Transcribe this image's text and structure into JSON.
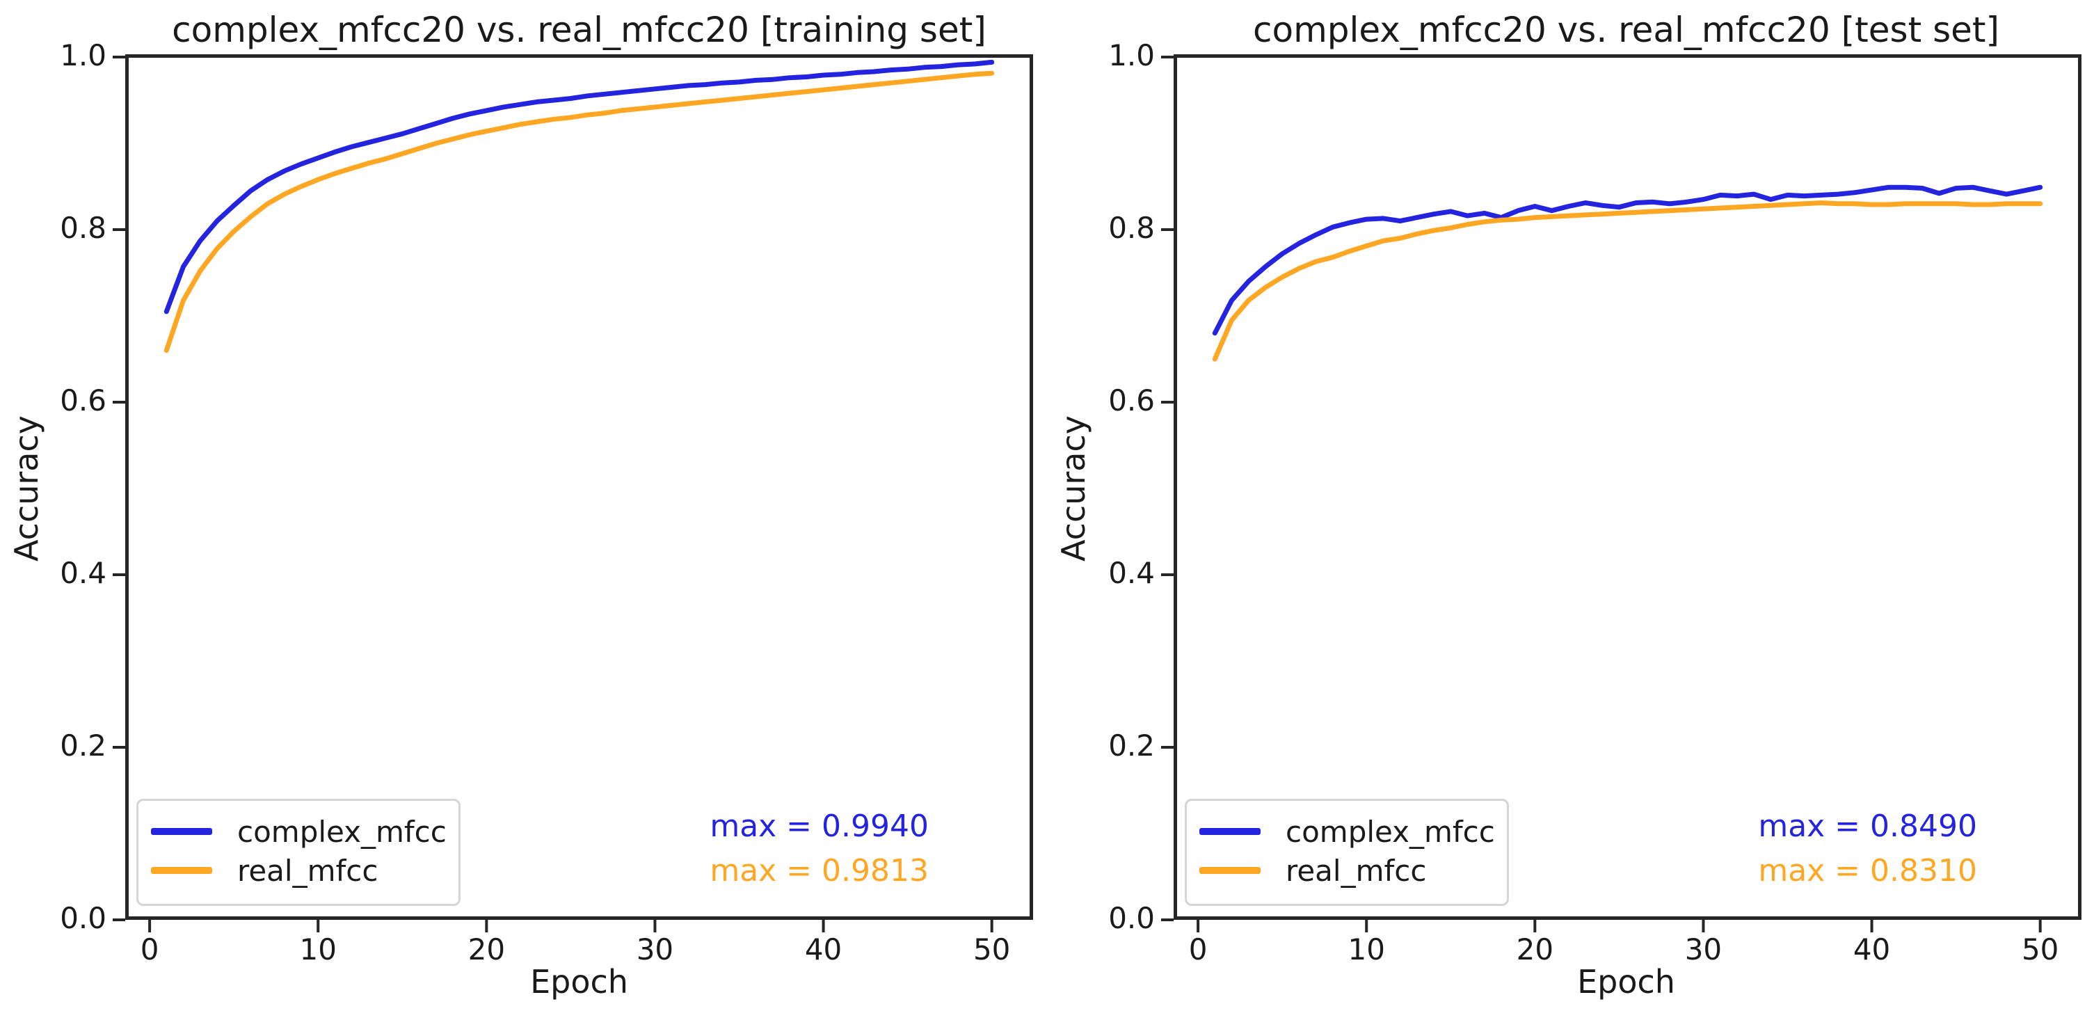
{
  "page": {
    "background": "#ffffff",
    "text_color": "#1a1a1a",
    "spine_color": "#262626"
  },
  "chart_data": [
    {
      "type": "line",
      "title": "complex_mfcc20 vs. real_mfcc20 [training set]",
      "xlabel": "Epoch",
      "ylabel": "Accuracy",
      "xlim": [
        -1.45,
        52.45
      ],
      "ylim": [
        0,
        1.0032
      ],
      "grid": false,
      "legend_position": "lower left",
      "xticks": [
        0,
        10,
        20,
        30,
        40,
        50
      ],
      "xtick_labels": [
        "0",
        "10",
        "20",
        "30",
        "40",
        "50"
      ],
      "yticks": [
        0.0,
        0.2,
        0.4,
        0.6,
        0.8,
        1.0
      ],
      "ytick_labels": [
        "0.0",
        "0.2",
        "0.4",
        "0.6",
        "0.8",
        "1.0"
      ],
      "x": [
        1,
        2,
        3,
        4,
        5,
        6,
        7,
        8,
        9,
        10,
        11,
        12,
        13,
        14,
        15,
        16,
        17,
        18,
        19,
        20,
        21,
        22,
        23,
        24,
        25,
        26,
        27,
        28,
        29,
        30,
        31,
        32,
        33,
        34,
        35,
        36,
        37,
        38,
        39,
        40,
        41,
        42,
        43,
        44,
        45,
        46,
        47,
        48,
        49,
        50
      ],
      "series": [
        {
          "name": "complex_mfcc",
          "color": "#2323e0",
          "values": [
            0.705,
            0.757,
            0.787,
            0.81,
            0.828,
            0.845,
            0.858,
            0.868,
            0.876,
            0.883,
            0.89,
            0.896,
            0.901,
            0.906,
            0.911,
            0.917,
            0.923,
            0.929,
            0.934,
            0.938,
            0.942,
            0.945,
            0.948,
            0.95,
            0.952,
            0.955,
            0.957,
            0.959,
            0.961,
            0.963,
            0.965,
            0.967,
            0.968,
            0.97,
            0.971,
            0.973,
            0.974,
            0.976,
            0.977,
            0.979,
            0.98,
            0.982,
            0.983,
            0.985,
            0.986,
            0.988,
            0.989,
            0.991,
            0.992,
            0.994
          ]
        },
        {
          "name": "real_mfcc",
          "color": "#ffa723",
          "values": [
            0.66,
            0.718,
            0.752,
            0.778,
            0.798,
            0.815,
            0.83,
            0.841,
            0.85,
            0.858,
            0.865,
            0.871,
            0.877,
            0.882,
            0.888,
            0.894,
            0.9,
            0.905,
            0.91,
            0.914,
            0.918,
            0.922,
            0.925,
            0.928,
            0.93,
            0.933,
            0.935,
            0.938,
            0.94,
            0.942,
            0.944,
            0.946,
            0.948,
            0.95,
            0.952,
            0.954,
            0.956,
            0.958,
            0.96,
            0.962,
            0.964,
            0.966,
            0.968,
            0.97,
            0.972,
            0.974,
            0.976,
            0.978,
            0.98,
            0.9813
          ]
        }
      ],
      "annotations": [
        {
          "text": "max = 0.9940",
          "color": "#2323e0"
        },
        {
          "text": "max = 0.9813",
          "color": "#ffa723"
        }
      ]
    },
    {
      "type": "line",
      "title": "complex_mfcc20 vs. real_mfcc20 [test set]",
      "xlabel": "Epoch",
      "ylabel": "Accuracy",
      "xlim": [
        -1.45,
        52.45
      ],
      "ylim": [
        0,
        1.0032
      ],
      "grid": false,
      "legend_position": "lower left",
      "xticks": [
        0,
        10,
        20,
        30,
        40,
        50
      ],
      "xtick_labels": [
        "0",
        "10",
        "20",
        "30",
        "40",
        "50"
      ],
      "yticks": [
        0.0,
        0.2,
        0.4,
        0.6,
        0.8,
        1.0
      ],
      "ytick_labels": [
        "0.0",
        "0.2",
        "0.4",
        "0.6",
        "0.8",
        "1.0"
      ],
      "x": [
        1,
        2,
        3,
        4,
        5,
        6,
        7,
        8,
        9,
        10,
        11,
        12,
        13,
        14,
        15,
        16,
        17,
        18,
        19,
        20,
        21,
        22,
        23,
        24,
        25,
        26,
        27,
        28,
        29,
        30,
        31,
        32,
        33,
        34,
        35,
        36,
        37,
        38,
        39,
        40,
        41,
        42,
        43,
        44,
        45,
        46,
        47,
        48,
        49,
        50
      ],
      "series": [
        {
          "name": "complex_mfcc",
          "color": "#2323e0",
          "values": [
            0.68,
            0.718,
            0.74,
            0.757,
            0.772,
            0.784,
            0.794,
            0.803,
            0.808,
            0.812,
            0.813,
            0.81,
            0.814,
            0.818,
            0.821,
            0.816,
            0.819,
            0.814,
            0.822,
            0.827,
            0.822,
            0.827,
            0.831,
            0.828,
            0.826,
            0.831,
            0.832,
            0.83,
            0.832,
            0.835,
            0.84,
            0.839,
            0.841,
            0.835,
            0.84,
            0.839,
            0.84,
            0.841,
            0.843,
            0.846,
            0.849,
            0.849,
            0.848,
            0.842,
            0.848,
            0.849,
            0.845,
            0.841,
            0.845,
            0.849
          ]
        },
        {
          "name": "real_mfcc",
          "color": "#ffa723",
          "values": [
            0.65,
            0.695,
            0.718,
            0.733,
            0.745,
            0.755,
            0.763,
            0.768,
            0.775,
            0.781,
            0.787,
            0.79,
            0.795,
            0.799,
            0.802,
            0.806,
            0.809,
            0.811,
            0.812,
            0.814,
            0.815,
            0.816,
            0.817,
            0.818,
            0.819,
            0.82,
            0.821,
            0.822,
            0.823,
            0.824,
            0.825,
            0.826,
            0.827,
            0.828,
            0.829,
            0.83,
            0.831,
            0.83,
            0.83,
            0.829,
            0.829,
            0.83,
            0.83,
            0.83,
            0.83,
            0.829,
            0.829,
            0.83,
            0.83,
            0.83
          ]
        }
      ],
      "annotations": [
        {
          "text": "max = 0.8490",
          "color": "#2323e0"
        },
        {
          "text": "max = 0.8310",
          "color": "#ffa723"
        }
      ]
    }
  ]
}
